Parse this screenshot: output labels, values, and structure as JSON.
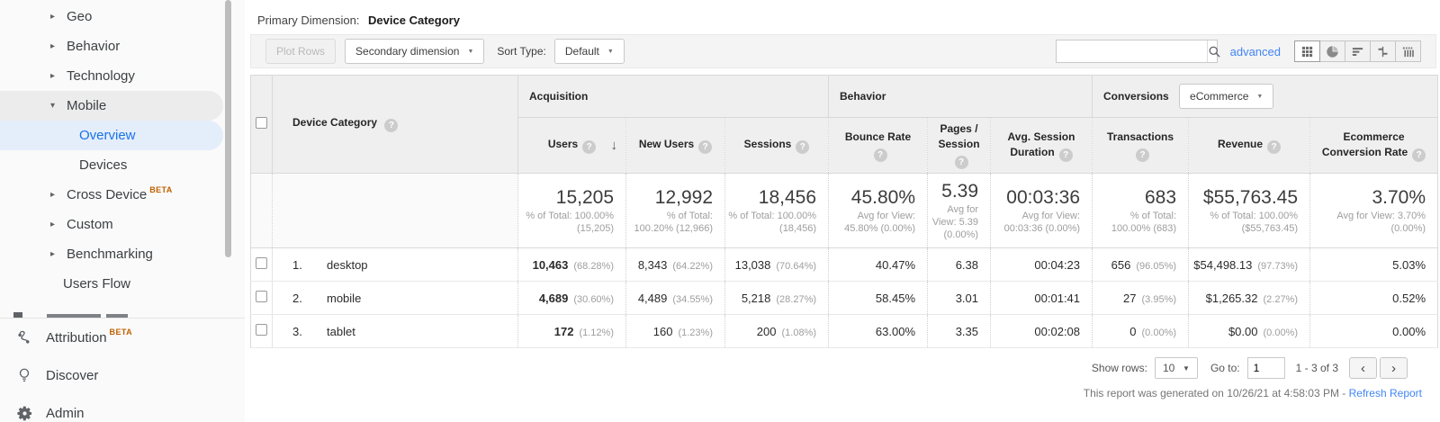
{
  "sidebar": {
    "items": [
      {
        "label": "Geo"
      },
      {
        "label": "Behavior"
      },
      {
        "label": "Technology"
      },
      {
        "label": "Mobile"
      },
      {
        "label": "Overview"
      },
      {
        "label": "Devices"
      },
      {
        "label": "Cross Device",
        "badge": "BETA"
      },
      {
        "label": "Custom"
      },
      {
        "label": "Benchmarking"
      },
      {
        "label": "Users Flow"
      },
      {
        "label": "Attribution",
        "badge": "BETA"
      },
      {
        "label": "Discover"
      },
      {
        "label": "Admin"
      }
    ]
  },
  "toolbar": {
    "primary_dimension_label": "Primary Dimension:",
    "primary_dimension_value": "Device Category",
    "plot_rows_label": "Plot Rows",
    "secondary_dimension_label": "Secondary dimension",
    "sort_type_label": "Sort Type:",
    "sort_type_value": "Default",
    "search_value": "",
    "advanced_label": "advanced"
  },
  "table": {
    "dimension_header": "Device Category",
    "groups": {
      "acquisition": "Acquisition",
      "behavior": "Behavior",
      "conversions": "Conversions",
      "conversions_selector": "eCommerce"
    },
    "columns": [
      "Users",
      "New Users",
      "Sessions",
      "Bounce Rate",
      "Pages / Session",
      "Avg. Session Duration",
      "Transactions",
      "Revenue",
      "Ecommerce Conversion Rate"
    ],
    "totals": [
      {
        "value": "15,205",
        "sub": "% of Total: 100.00% (15,205)"
      },
      {
        "value": "12,992",
        "sub": "% of Total: 100.20% (12,966)"
      },
      {
        "value": "18,456",
        "sub": "% of Total: 100.00% (18,456)"
      },
      {
        "value": "45.80%",
        "sub": "Avg for View: 45.80% (0.00%)"
      },
      {
        "value": "5.39",
        "sub": "Avg for View: 5.39 (0.00%)"
      },
      {
        "value": "00:03:36",
        "sub": "Avg for View: 00:03:36 (0.00%)"
      },
      {
        "value": "683",
        "sub": "% of Total: 100.00% (683)"
      },
      {
        "value": "$55,763.45",
        "sub": "% of Total: 100.00% ($55,763.45)"
      },
      {
        "value": "3.70%",
        "sub": "Avg for View: 3.70% (0.00%)"
      }
    ],
    "rows": [
      {
        "num": "1.",
        "label": "desktop",
        "metrics": [
          [
            "10,463",
            "(68.28%)"
          ],
          [
            "8,343",
            "(64.22%)"
          ],
          [
            "13,038",
            "(70.64%)"
          ],
          [
            "40.47%"
          ],
          [
            "6.38"
          ],
          [
            "00:04:23"
          ],
          [
            "656",
            "(96.05%)"
          ],
          [
            "$54,498.13",
            "(97.73%)"
          ],
          [
            "5.03%"
          ]
        ]
      },
      {
        "num": "2.",
        "label": "mobile",
        "metrics": [
          [
            "4,689",
            "(30.60%)"
          ],
          [
            "4,489",
            "(34.55%)"
          ],
          [
            "5,218",
            "(28.27%)"
          ],
          [
            "58.45%"
          ],
          [
            "3.01"
          ],
          [
            "00:01:41"
          ],
          [
            "27",
            "(3.95%)"
          ],
          [
            "$1,265.32",
            "(2.27%)"
          ],
          [
            "0.52%"
          ]
        ]
      },
      {
        "num": "3.",
        "label": "tablet",
        "metrics": [
          [
            "172",
            "(1.12%)"
          ],
          [
            "160",
            "(1.23%)"
          ],
          [
            "200",
            "(1.08%)"
          ],
          [
            "63.00%"
          ],
          [
            "3.35"
          ],
          [
            "00:02:08"
          ],
          [
            "0",
            "(0.00%)"
          ],
          [
            "$0.00",
            "(0.00%)"
          ],
          [
            "0.00%"
          ]
        ]
      }
    ]
  },
  "pagination": {
    "show_rows_label": "Show rows:",
    "show_rows_value": "10",
    "goto_label": "Go to:",
    "goto_value": "1",
    "range": "1 - 3 of 3"
  },
  "footer": {
    "generated_text": "This report was generated on 10/26/21 at 4:58:03 PM -",
    "refresh_label": "Refresh Report"
  },
  "colors": {
    "accent_blue": "#4285f4",
    "selected_nav_text": "#1a73e8",
    "selected_nav_bg": "#e4eefb",
    "beta_orange": "#c06000"
  }
}
